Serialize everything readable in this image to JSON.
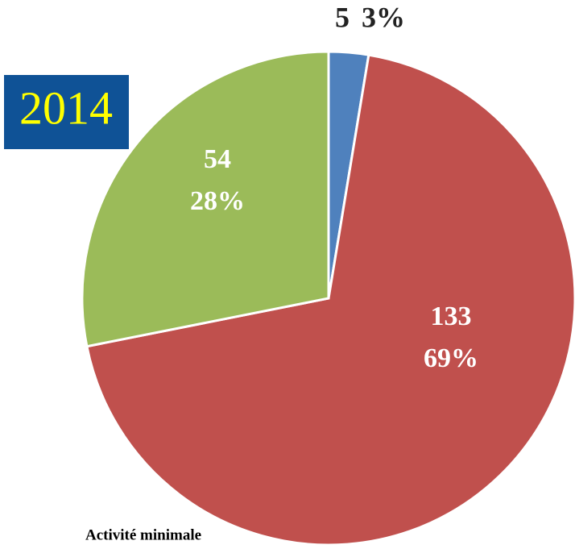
{
  "chart_data": {
    "type": "pie",
    "title": "2014",
    "categories": [
      "Activité minimale",
      null,
      null
    ],
    "values": [
      5,
      133,
      54
    ],
    "percentages": [
      3,
      69,
      28
    ],
    "percentage_labels": [
      "3%",
      "69%",
      "28%"
    ],
    "colors": [
      "#4f81bd",
      "#c0504d",
      "#9bbb59"
    ]
  }
}
